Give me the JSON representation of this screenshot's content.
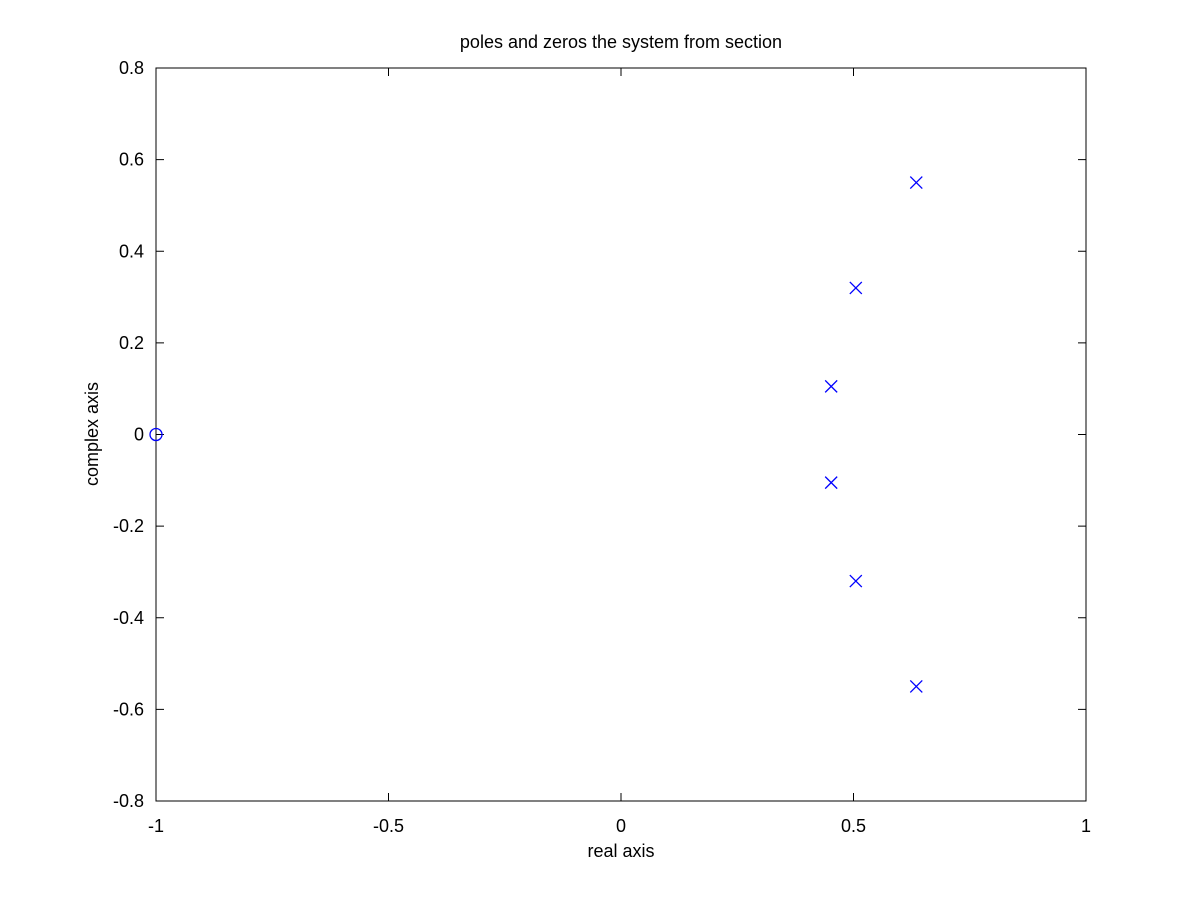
{
  "chart_data": {
    "type": "scatter",
    "title": "poles and zeros the system from section",
    "xlabel": "real axis",
    "ylabel": "complex axis",
    "xlim": [
      -1,
      1
    ],
    "ylim": [
      -0.8,
      0.8
    ],
    "xticks": [
      -1,
      -0.5,
      0,
      0.5,
      1
    ],
    "xtick_labels": [
      "-1",
      "-0.5",
      "0",
      "0.5",
      "1"
    ],
    "yticks": [
      -0.8,
      -0.6,
      -0.4,
      -0.2,
      0,
      0.2,
      0.4,
      0.6,
      0.8
    ],
    "ytick_labels": [
      "-0.8",
      "-0.6",
      "-0.4",
      "-0.2",
      "0",
      "0.2",
      "0.4",
      "0.6",
      "0.8"
    ],
    "grid": false,
    "marker_color": "#0000ff",
    "series": [
      {
        "marker": "o",
        "x": [
          -1
        ],
        "y": [
          0
        ]
      },
      {
        "marker": "x",
        "x": [
          0.635,
          0.505,
          0.452,
          0.452,
          0.505,
          0.635
        ],
        "y": [
          0.55,
          0.32,
          0.105,
          -0.105,
          -0.32,
          -0.55
        ]
      }
    ]
  }
}
